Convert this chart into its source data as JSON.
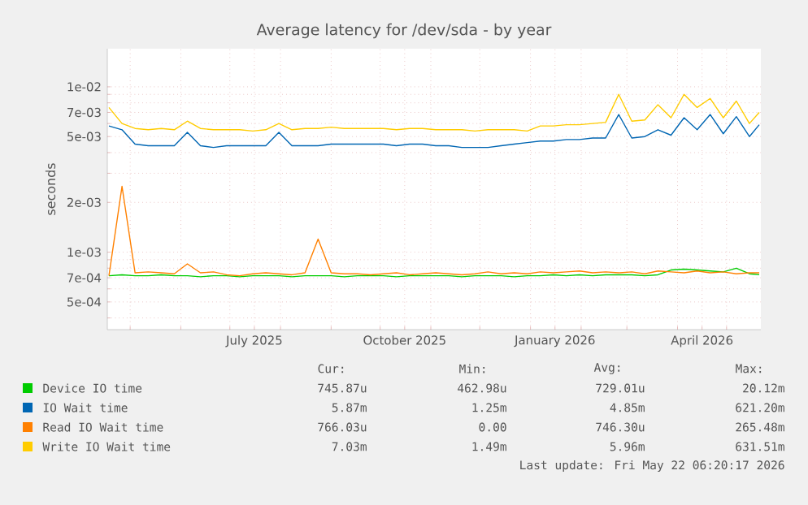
{
  "chart_data": {
    "type": "line",
    "title": "Average latency for /dev/sda - by year",
    "ylabel": "seconds",
    "log": "y",
    "grid": true,
    "legend": "bottom",
    "marker": "none",
    "line_style": "solid",
    "xlim": [
      "2025-04-17",
      "2026-05-22"
    ],
    "xticks": [
      {
        "value": "2025-05-01",
        "label": null
      },
      {
        "value": "2025-06-01",
        "label": null
      },
      {
        "value": "2025-07-01",
        "label": null
      },
      {
        "value": "2025-07-16",
        "label": "July 2025"
      },
      {
        "value": "2025-08-01",
        "label": null
      },
      {
        "value": "2025-09-01",
        "label": null
      },
      {
        "value": "2025-10-01",
        "label": null
      },
      {
        "value": "2025-10-16",
        "label": "October 2025"
      },
      {
        "value": "2025-11-01",
        "label": null
      },
      {
        "value": "2025-12-01",
        "label": null
      },
      {
        "value": "2026-01-01",
        "label": null
      },
      {
        "value": "2026-01-16",
        "label": "January 2026"
      },
      {
        "value": "2026-02-01",
        "label": null
      },
      {
        "value": "2026-03-01",
        "label": null
      },
      {
        "value": "2026-04-01",
        "label": null
      },
      {
        "value": "2026-04-16",
        "label": "April 2026"
      },
      {
        "value": "2026-05-01",
        "label": null
      }
    ],
    "ylim": [
      0.00034,
      0.017
    ],
    "yticks": [
      {
        "value": 0.0004,
        "label": null
      },
      {
        "value": 0.0005,
        "label": "5e-04"
      },
      {
        "value": 0.0006,
        "label": null
      },
      {
        "value": 0.0007,
        "label": "7e-04"
      },
      {
        "value": 0.0008,
        "label": null
      },
      {
        "value": 0.0009,
        "label": null
      },
      {
        "value": 0.001,
        "label": "1e-03"
      },
      {
        "value": 0.002,
        "label": "2e-03"
      },
      {
        "value": 0.003,
        "label": null
      },
      {
        "value": 0.004,
        "label": null
      },
      {
        "value": 0.005,
        "label": "5e-03"
      },
      {
        "value": 0.006,
        "label": null
      },
      {
        "value": 0.007,
        "label": "7e-03"
      },
      {
        "value": 0.008,
        "label": null
      },
      {
        "value": 0.009,
        "label": null
      },
      {
        "value": 0.01,
        "label": "1e-02"
      }
    ],
    "x": [
      "2025-04-18",
      "2025-04-26",
      "2025-05-04",
      "2025-05-12",
      "2025-05-20",
      "2025-05-28",
      "2025-06-05",
      "2025-06-13",
      "2025-06-21",
      "2025-06-29",
      "2025-07-07",
      "2025-07-15",
      "2025-07-23",
      "2025-07-31",
      "2025-08-08",
      "2025-08-16",
      "2025-08-24",
      "2025-09-01",
      "2025-09-09",
      "2025-09-17",
      "2025-09-25",
      "2025-10-03",
      "2025-10-11",
      "2025-10-19",
      "2025-10-27",
      "2025-11-04",
      "2025-11-12",
      "2025-11-20",
      "2025-11-28",
      "2025-12-06",
      "2025-12-14",
      "2025-12-22",
      "2025-12-30",
      "2026-01-07",
      "2026-01-15",
      "2026-01-23",
      "2026-01-31",
      "2026-02-08",
      "2026-02-16",
      "2026-02-24",
      "2026-03-04",
      "2026-03-12",
      "2026-03-20",
      "2026-03-28",
      "2026-04-05",
      "2026-04-13",
      "2026-04-21",
      "2026-04-29",
      "2026-05-07",
      "2026-05-15",
      "2026-05-21"
    ],
    "series": [
      {
        "name": "Device IO time",
        "color": "#00cc00",
        "values": [
          0.00072,
          0.00073,
          0.00072,
          0.00072,
          0.00073,
          0.00072,
          0.00072,
          0.00071,
          0.00072,
          0.00072,
          0.00071,
          0.00072,
          0.00072,
          0.00072,
          0.00071,
          0.00072,
          0.00072,
          0.00072,
          0.00071,
          0.00072,
          0.00072,
          0.00072,
          0.00071,
          0.00072,
          0.00072,
          0.00072,
          0.00072,
          0.00071,
          0.00072,
          0.00072,
          0.00072,
          0.00071,
          0.00072,
          0.00072,
          0.00073,
          0.00072,
          0.00073,
          0.00072,
          0.00073,
          0.00073,
          0.00073,
          0.00072,
          0.00073,
          0.00078,
          0.00079,
          0.00078,
          0.00077,
          0.00076,
          0.0008,
          0.00074,
          0.00073
        ]
      },
      {
        "name": "IO Wait time",
        "color": "#0066b3",
        "values": [
          0.0058,
          0.0055,
          0.0045,
          0.0044,
          0.0044,
          0.0044,
          0.0053,
          0.0044,
          0.0043,
          0.0044,
          0.0044,
          0.0044,
          0.0044,
          0.0053,
          0.0044,
          0.0044,
          0.0044,
          0.0045,
          0.0045,
          0.0045,
          0.0045,
          0.0045,
          0.0044,
          0.0045,
          0.0045,
          0.0044,
          0.0044,
          0.0043,
          0.0043,
          0.0043,
          0.0044,
          0.0045,
          0.0046,
          0.0047,
          0.0047,
          0.0048,
          0.0048,
          0.0049,
          0.0049,
          0.0068,
          0.0049,
          0.005,
          0.0055,
          0.0051,
          0.0065,
          0.0055,
          0.0068,
          0.0052,
          0.0066,
          0.005,
          0.0059
        ]
      },
      {
        "name": "Read IO Wait time",
        "color": "#ff8000",
        "values": [
          0.00072,
          0.0025,
          0.00075,
          0.00076,
          0.00075,
          0.00074,
          0.00085,
          0.00075,
          0.00076,
          0.00073,
          0.00072,
          0.00074,
          0.00075,
          0.00074,
          0.00073,
          0.00075,
          0.0012,
          0.00075,
          0.00074,
          0.00074,
          0.00073,
          0.00074,
          0.00075,
          0.00073,
          0.00074,
          0.00075,
          0.00074,
          0.00073,
          0.00074,
          0.00076,
          0.00074,
          0.00075,
          0.00074,
          0.00076,
          0.00075,
          0.00076,
          0.00077,
          0.00075,
          0.00076,
          0.00075,
          0.00076,
          0.00074,
          0.00077,
          0.00076,
          0.00075,
          0.00077,
          0.00075,
          0.00076,
          0.00074,
          0.00075,
          0.00075
        ]
      },
      {
        "name": "Write IO Wait time",
        "color": "#ffcc00",
        "values": [
          0.0075,
          0.006,
          0.0056,
          0.0055,
          0.0056,
          0.0055,
          0.0062,
          0.0056,
          0.0055,
          0.0055,
          0.0055,
          0.0054,
          0.0055,
          0.006,
          0.0055,
          0.0056,
          0.0056,
          0.0057,
          0.0056,
          0.0056,
          0.0056,
          0.0056,
          0.0055,
          0.0056,
          0.0056,
          0.0055,
          0.0055,
          0.0055,
          0.0054,
          0.0055,
          0.0055,
          0.0055,
          0.0054,
          0.0058,
          0.0058,
          0.0059,
          0.0059,
          0.006,
          0.0061,
          0.009,
          0.0062,
          0.0063,
          0.0078,
          0.0065,
          0.009,
          0.0075,
          0.0085,
          0.0065,
          0.0082,
          0.006,
          0.007
        ]
      }
    ],
    "annotations": [
      "Cur:",
      "Min:",
      "Avg:",
      "Max:",
      "745.87u",
      "462.98u",
      "729.01u",
      "20.12m",
      "5.87m",
      "1.25m",
      "4.85m",
      "621.20m",
      "766.03u",
      "0.00",
      "746.30u",
      "265.48m",
      "7.03m",
      "1.49m",
      "5.96m",
      "631.51m",
      "Last update: Fri May 22 06:20:17 2026"
    ]
  }
}
